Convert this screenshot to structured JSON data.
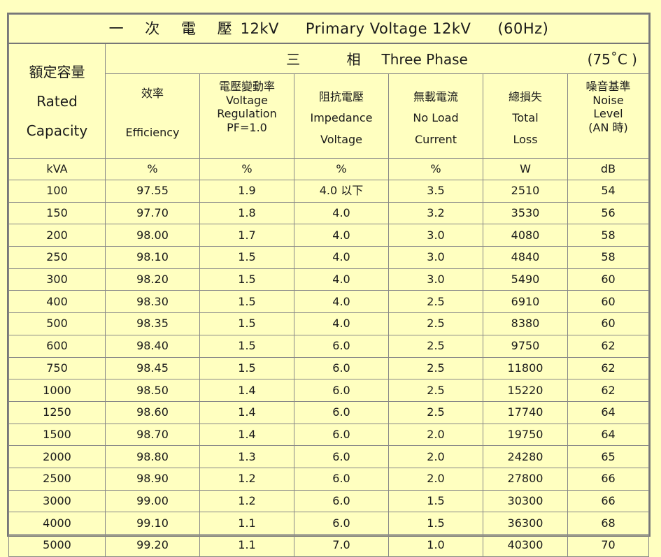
{
  "title": {
    "zh": "一 次 電 壓",
    "zh_voltage": "12kV",
    "en": "Primary Voltage 12kV",
    "freq": "(60Hz)"
  },
  "phase": {
    "zh": "三 相",
    "en": "Three Phase",
    "temp": "(75˚C )"
  },
  "capacity_header": {
    "zh": "額定容量",
    "en1": "Rated",
    "en2": "Capacity"
  },
  "columns": [
    {
      "zh": "效率",
      "en": [
        "Efficiency"
      ]
    },
    {
      "zh": "電壓變動率",
      "en": [
        "Voltage",
        "Regulation",
        "PF=1.0"
      ]
    },
    {
      "zh": "阻抗電壓",
      "en": [
        "Impedance",
        "Voltage"
      ]
    },
    {
      "zh": "無載電流",
      "en": [
        "No Load",
        "Current"
      ]
    },
    {
      "zh": "總損失",
      "en": [
        "Total",
        "Loss"
      ]
    },
    {
      "zh": "噪音基準",
      "en": [
        "Noise",
        "Level",
        "(AN 時)"
      ]
    }
  ],
  "units": [
    "kVA",
    "%",
    "%",
    "%",
    "%",
    "W",
    "dB"
  ],
  "rows": [
    [
      "100",
      "97.55",
      "1.9",
      "4.0 以下",
      "3.5",
      "2510",
      "54"
    ],
    [
      "150",
      "97.70",
      "1.8",
      "4.0",
      "3.2",
      "3530",
      "56"
    ],
    [
      "200",
      "98.00",
      "1.7",
      "4.0",
      "3.0",
      "4080",
      "58"
    ],
    [
      "250",
      "98.10",
      "1.5",
      "4.0",
      "3.0",
      "4840",
      "58"
    ],
    [
      "300",
      "98.20",
      "1.5",
      "4.0",
      "3.0",
      "5490",
      "60"
    ],
    [
      "400",
      "98.30",
      "1.5",
      "4.0",
      "2.5",
      "6910",
      "60"
    ],
    [
      "500",
      "98.35",
      "1.5",
      "4.0",
      "2.5",
      "8380",
      "60"
    ],
    [
      "600",
      "98.40",
      "1.5",
      "6.0",
      "2.5",
      "9750",
      "62"
    ],
    [
      "750",
      "98.45",
      "1.5",
      "6.0",
      "2.5",
      "11800",
      "62"
    ],
    [
      "1000",
      "98.50",
      "1.4",
      "6.0",
      "2.5",
      "15220",
      "62"
    ],
    [
      "1250",
      "98.60",
      "1.4",
      "6.0",
      "2.5",
      "17740",
      "64"
    ],
    [
      "1500",
      "98.70",
      "1.4",
      "6.0",
      "2.0",
      "19750",
      "64"
    ],
    [
      "2000",
      "98.80",
      "1.3",
      "6.0",
      "2.0",
      "24280",
      "65"
    ],
    [
      "2500",
      "98.90",
      "1.2",
      "6.0",
      "2.0",
      "27800",
      "66"
    ],
    [
      "3000",
      "99.00",
      "1.2",
      "6.0",
      "1.5",
      "30300",
      "66"
    ],
    [
      "4000",
      "99.10",
      "1.1",
      "6.0",
      "1.5",
      "36300",
      "68"
    ],
    [
      "5000",
      "99.20",
      "1.1",
      "7.0",
      "1.0",
      "40300",
      "70"
    ]
  ]
}
